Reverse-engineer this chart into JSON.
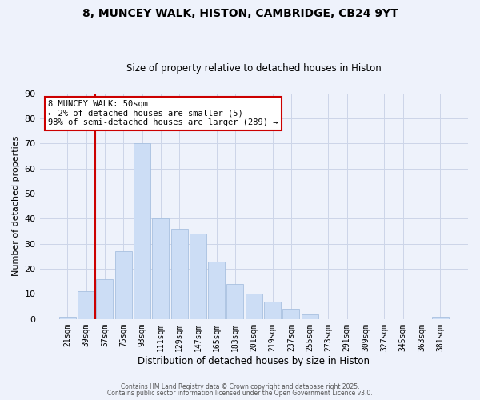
{
  "title": "8, MUNCEY WALK, HISTON, CAMBRIDGE, CB24 9YT",
  "subtitle": "Size of property relative to detached houses in Histon",
  "xlabel": "Distribution of detached houses by size in Histon",
  "ylabel": "Number of detached properties",
  "bar_color": "#ccddf5",
  "bar_edge_color": "#a8c0e0",
  "categories": [
    "21sqm",
    "39sqm",
    "57sqm",
    "75sqm",
    "93sqm",
    "111sqm",
    "129sqm",
    "147sqm",
    "165sqm",
    "183sqm",
    "201sqm",
    "219sqm",
    "237sqm",
    "255sqm",
    "273sqm",
    "291sqm",
    "309sqm",
    "327sqm",
    "345sqm",
    "363sqm",
    "381sqm"
  ],
  "values": [
    1,
    11,
    16,
    27,
    70,
    40,
    36,
    34,
    23,
    14,
    10,
    7,
    4,
    2,
    0,
    0,
    0,
    0,
    0,
    0,
    1
  ],
  "vline_color": "#cc0000",
  "vline_x_index": 1.5,
  "ylim": [
    0,
    90
  ],
  "yticks": [
    0,
    10,
    20,
    30,
    40,
    50,
    60,
    70,
    80,
    90
  ],
  "annotation_title": "8 MUNCEY WALK: 50sqm",
  "annotation_line1": "← 2% of detached houses are smaller (5)",
  "annotation_line2": "98% of semi-detached houses are larger (289) →",
  "annotation_box_color": "#ffffff",
  "annotation_box_edge": "#cc0000",
  "grid_color": "#ccd5e8",
  "bg_color": "#eef2fb",
  "footer1": "Contains HM Land Registry data © Crown copyright and database right 2025.",
  "footer2": "Contains public sector information licensed under the Open Government Licence v3.0."
}
